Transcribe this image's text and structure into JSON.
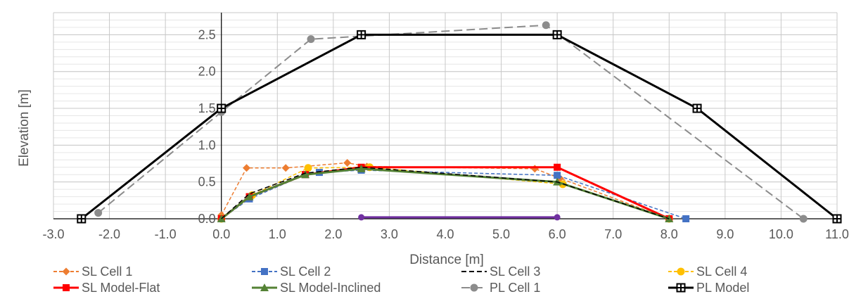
{
  "chart_data": {
    "type": "line",
    "title": "",
    "xlabel": "Distance [m]",
    "ylabel": "Elevation [m]",
    "xlim": [
      -3.0,
      11.0
    ],
    "ylim": [
      0.0,
      2.8
    ],
    "x_ticks": [
      -3.0,
      -2.0,
      -1.0,
      0.0,
      1.0,
      2.0,
      3.0,
      4.0,
      5.0,
      6.0,
      7.0,
      8.0,
      9.0,
      10.0,
      11.0
    ],
    "x_tick_labels": [
      "-3.0",
      "-2.0",
      "-1.0",
      "0.0",
      "1.0",
      "2.0",
      "3.0",
      "4.0",
      "5.0",
      "6.0",
      "7.0",
      "8.0",
      "9.0",
      "10.0",
      "11.0"
    ],
    "y_ticks": [
      0.0,
      0.5,
      1.0,
      1.5,
      2.0,
      2.5
    ],
    "y_tick_labels": [
      "0.0",
      "0.5",
      "1.0",
      "1.5",
      "2.0",
      "2.5"
    ],
    "grid": true,
    "legend_position": "bottom",
    "series": [
      {
        "name": "SL Cell 1",
        "color": "#ED7D31",
        "dash": "dash",
        "marker": "diamond",
        "x": [
          0.0,
          0.45,
          1.15,
          2.25,
          2.6,
          5.6,
          6.05,
          8.0
        ],
        "y": [
          0.05,
          0.69,
          0.69,
          0.76,
          0.71,
          0.68,
          0.55,
          0.0
        ]
      },
      {
        "name": "SL Cell 2",
        "color": "#4472C4",
        "dash": "dash",
        "marker": "square",
        "x": [
          0.0,
          0.5,
          1.5,
          1.75,
          2.5,
          6.0,
          8.3
        ],
        "y": [
          0.0,
          0.27,
          0.6,
          0.63,
          0.66,
          0.59,
          0.0
        ]
      },
      {
        "name": "SL Cell 3",
        "color": "#000000",
        "dash": "dash",
        "marker": "none",
        "x": [
          0.0,
          0.5,
          1.5,
          2.5,
          6.0,
          8.0
        ],
        "y": [
          0.0,
          0.34,
          0.62,
          0.7,
          0.5,
          0.0
        ]
      },
      {
        "name": "SL Cell 4",
        "color": "#FFC000",
        "dash": "dash",
        "marker": "circle",
        "x": [
          0.0,
          0.55,
          1.55,
          2.65,
          6.1,
          8.0
        ],
        "y": [
          0.0,
          0.32,
          0.69,
          0.7,
          0.47,
          0.0
        ]
      },
      {
        "name": "SL Model-Flat",
        "color": "#FF0000",
        "dash": "solid",
        "marker": "square",
        "x": [
          0.0,
          0.5,
          1.5,
          2.5,
          6.0,
          8.0
        ],
        "y": [
          0.0,
          0.3,
          0.6,
          0.7,
          0.7,
          0.0
        ]
      },
      {
        "name": "SL Model-Inclined",
        "color": "#548235",
        "dash": "solid",
        "marker": "triangle",
        "x": [
          0.0,
          0.5,
          1.5,
          2.5,
          6.0,
          8.0
        ],
        "y": [
          0.0,
          0.3,
          0.6,
          0.68,
          0.5,
          0.0
        ]
      },
      {
        "name": "PL Cell 1",
        "color": "#8C8C8C",
        "dash": "dash",
        "marker": "circle",
        "x": [
          -2.2,
          0.0,
          1.6,
          5.8,
          10.4
        ],
        "y": [
          0.08,
          1.45,
          2.44,
          2.63,
          0.0
        ]
      },
      {
        "name": "PL Model",
        "color": "#000000",
        "dash": "solid",
        "marker": "cross-square",
        "x": [
          -2.5,
          0.0,
          2.5,
          6.0,
          8.5,
          11.0
        ],
        "y": [
          0.0,
          1.5,
          2.5,
          2.5,
          1.5,
          0.0
        ]
      }
    ],
    "annotation_line": {
      "color": "#7030A0",
      "x": [
        2.5,
        6.0
      ],
      "y": [
        0.02,
        0.02
      ]
    }
  }
}
